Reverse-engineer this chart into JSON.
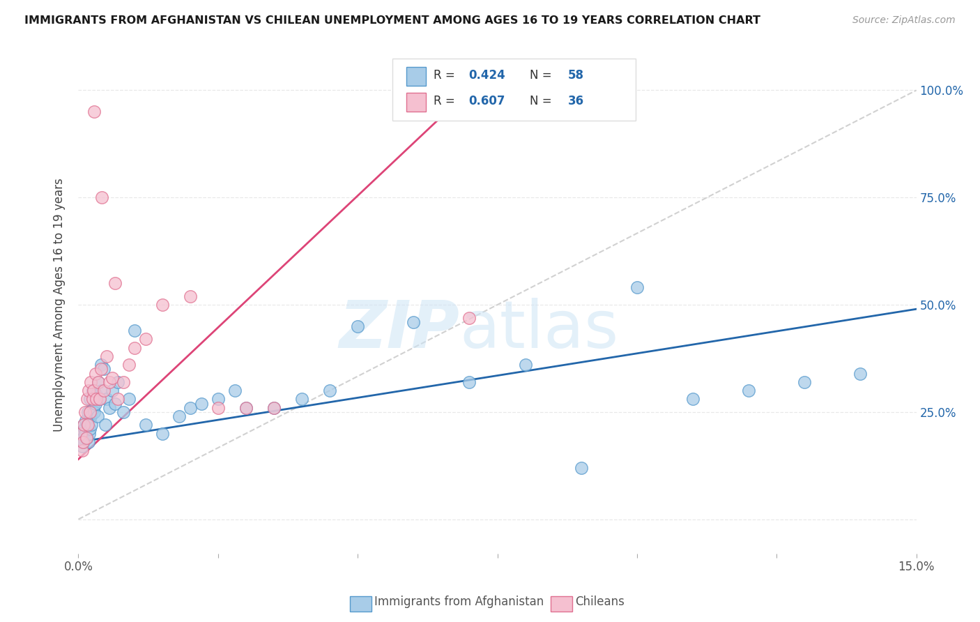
{
  "title": "IMMIGRANTS FROM AFGHANISTAN VS CHILEAN UNEMPLOYMENT AMONG AGES 16 TO 19 YEARS CORRELATION CHART",
  "source": "Source: ZipAtlas.com",
  "ylabel_label": "Unemployment Among Ages 16 to 19 years",
  "legend_label1": "Immigrants from Afghanistan",
  "legend_label2": "Chileans",
  "legend_r1": "0.424",
  "legend_n1": "58",
  "legend_r2": "0.607",
  "legend_n2": "36",
  "blue_scatter_color": "#a8cce8",
  "blue_edge_color": "#5599cc",
  "pink_scatter_color": "#f5c0d0",
  "pink_edge_color": "#e07090",
  "blue_line_color": "#2266aa",
  "pink_line_color": "#dd4477",
  "ref_line_color": "#cccccc",
  "grid_color": "#e8e8e8",
  "blue_scatter_x": [
    0.05,
    0.07,
    0.08,
    0.09,
    0.1,
    0.11,
    0.12,
    0.13,
    0.15,
    0.16,
    0.17,
    0.18,
    0.19,
    0.2,
    0.21,
    0.22,
    0.23,
    0.25,
    0.27,
    0.28,
    0.3,
    0.32,
    0.34,
    0.36,
    0.38,
    0.4,
    0.42,
    0.45,
    0.48,
    0.5,
    0.55,
    0.6,
    0.65,
    0.7,
    0.8,
    0.9,
    1.0,
    1.2,
    1.5,
    1.8,
    2.0,
    2.2,
    2.5,
    2.8,
    3.0,
    3.5,
    4.0,
    4.5,
    5.0,
    6.0,
    7.0,
    8.0,
    9.0,
    10.0,
    11.0,
    12.0,
    13.0,
    14.0
  ],
  "blue_scatter_y": [
    20,
    17,
    19,
    22,
    18,
    21,
    20,
    23,
    19,
    22,
    25,
    18,
    20,
    21,
    28,
    24,
    22,
    30,
    26,
    25,
    27,
    29,
    24,
    32,
    28,
    36,
    30,
    35,
    22,
    28,
    26,
    30,
    27,
    32,
    25,
    28,
    44,
    22,
    20,
    24,
    26,
    27,
    28,
    30,
    26,
    26,
    28,
    30,
    45,
    46,
    32,
    36,
    12,
    54,
    28,
    30,
    32,
    34
  ],
  "pink_scatter_x": [
    0.05,
    0.07,
    0.08,
    0.1,
    0.12,
    0.14,
    0.15,
    0.17,
    0.18,
    0.2,
    0.22,
    0.25,
    0.27,
    0.3,
    0.32,
    0.35,
    0.38,
    0.4,
    0.45,
    0.5,
    0.55,
    0.6,
    0.7,
    0.8,
    0.9,
    1.0,
    1.2,
    1.5,
    2.0,
    2.5,
    3.0,
    3.5,
    7.0,
    0.28,
    0.42,
    0.65
  ],
  "pink_scatter_y": [
    20,
    16,
    18,
    22,
    25,
    19,
    28,
    22,
    30,
    25,
    32,
    28,
    30,
    34,
    28,
    32,
    28,
    35,
    30,
    38,
    32,
    33,
    28,
    32,
    36,
    40,
    42,
    50,
    52,
    26,
    26,
    26,
    47,
    95,
    75,
    55
  ],
  "blue_trend_x0": 0.0,
  "blue_trend_y0": 18.0,
  "blue_trend_x1": 15.0,
  "blue_trend_y1": 49.0,
  "pink_trend_x0": 0.0,
  "pink_trend_y0": 14.0,
  "pink_trend_x1": 7.0,
  "pink_trend_y1": 100.0,
  "xmin": 0.0,
  "xmax": 15.0,
  "ymin": -8.0,
  "ymax": 108.0
}
